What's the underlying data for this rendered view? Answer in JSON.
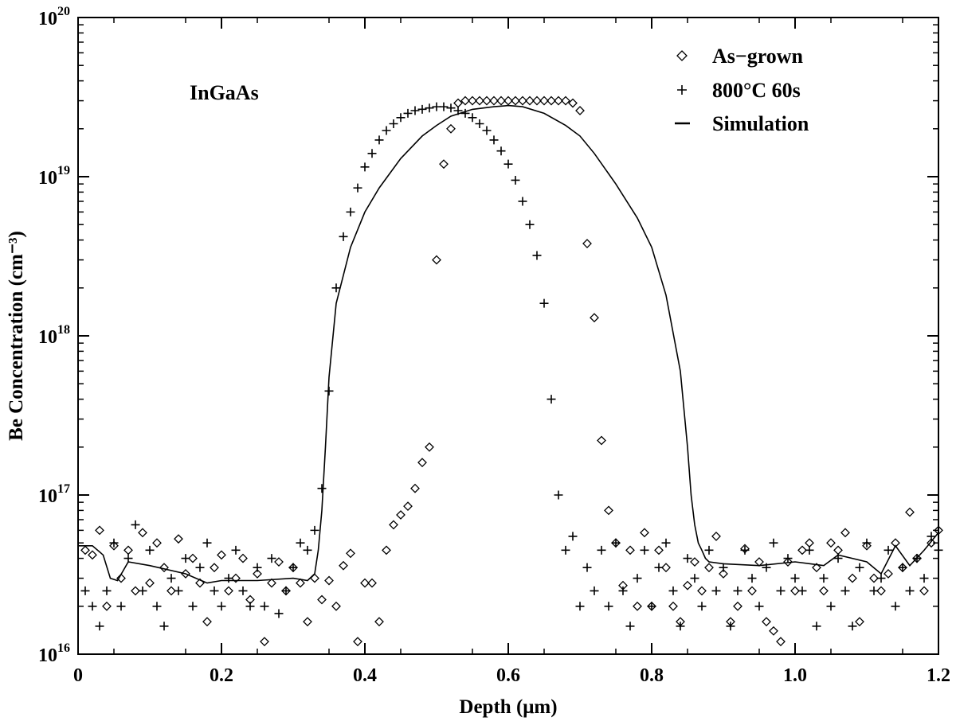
{
  "chart_data": {
    "type": "scatter",
    "xlabel": "Depth (μm)",
    "ylabel": "Be Concentration (cm⁻³)",
    "xlim": [
      0,
      1.2
    ],
    "ylim": [
      1e+16,
      1e+20
    ],
    "yscale": "log",
    "x_ticks": [
      {
        "value": 0,
        "label": "0"
      },
      {
        "value": 0.2,
        "label": "0.2"
      },
      {
        "value": 0.4,
        "label": "0.4"
      },
      {
        "value": 0.6,
        "label": "0.6"
      },
      {
        "value": 0.8,
        "label": "0.8"
      },
      {
        "value": 1.0,
        "label": "1.0"
      },
      {
        "value": 1.2,
        "label": "1.2"
      }
    ],
    "y_ticks": [
      {
        "value": 1e+16,
        "base": "10",
        "exp": "16"
      },
      {
        "value": 1e+17,
        "base": "10",
        "exp": "17"
      },
      {
        "value": 1e+18,
        "base": "10",
        "exp": "18"
      },
      {
        "value": 1e+19,
        "base": "10",
        "exp": "19"
      },
      {
        "value": 1e+20,
        "base": "10",
        "exp": "20"
      }
    ],
    "annotation": "InGaAs",
    "legend_position": "top-right",
    "series": [
      {
        "name": "As−grown",
        "marker": "diamond",
        "x": [
          0.01,
          0.02,
          0.03,
          0.04,
          0.05,
          0.06,
          0.07,
          0.08,
          0.09,
          0.1,
          0.11,
          0.12,
          0.13,
          0.14,
          0.15,
          0.16,
          0.17,
          0.18,
          0.19,
          0.2,
          0.21,
          0.22,
          0.23,
          0.24,
          0.25,
          0.26,
          0.27,
          0.28,
          0.29,
          0.3,
          0.31,
          0.32,
          0.33,
          0.34,
          0.35,
          0.36,
          0.37,
          0.38,
          0.39,
          0.4,
          0.41,
          0.42,
          0.43,
          0.44,
          0.45,
          0.46,
          0.47,
          0.48,
          0.49,
          0.5,
          0.51,
          0.52,
          0.53,
          0.54,
          0.55,
          0.56,
          0.57,
          0.58,
          0.59,
          0.6,
          0.61,
          0.62,
          0.63,
          0.64,
          0.65,
          0.66,
          0.67,
          0.68,
          0.69,
          0.7,
          0.71,
          0.72,
          0.73,
          0.74,
          0.75,
          0.76,
          0.77,
          0.78,
          0.79,
          0.8,
          0.81,
          0.82,
          0.83,
          0.84,
          0.85,
          0.86,
          0.87,
          0.88,
          0.89,
          0.9,
          0.91,
          0.92,
          0.93,
          0.94,
          0.95,
          0.96,
          0.97,
          0.98,
          0.99,
          1.0,
          1.01,
          1.02,
          1.03,
          1.04,
          1.05,
          1.06,
          1.07,
          1.08,
          1.09,
          1.1,
          1.11,
          1.12,
          1.13,
          1.14,
          1.15,
          1.16,
          1.17,
          1.18,
          1.19,
          1.2
        ],
        "y": [
          4.5e+16,
          4.2e+16,
          6e+16,
          2e+16,
          4.8e+16,
          3e+16,
          4.5e+16,
          2.5e+16,
          5.8e+16,
          2.8e+16,
          5e+16,
          3.5e+16,
          2.5e+16,
          5.3e+16,
          3.2e+16,
          4e+16,
          2.8e+16,
          1.6e+16,
          3.5e+16,
          4.2e+16,
          2.5e+16,
          3e+16,
          4e+16,
          2.2e+16,
          3.2e+16,
          1.2e+16,
          2.8e+16,
          3.8e+16,
          2.5e+16,
          3.5e+16,
          2.8e+16,
          1.6e+16,
          3e+16,
          2.2e+16,
          2.9e+16,
          2e+16,
          3.6e+16,
          4.3e+16,
          1.2e+16,
          2.8e+16,
          2.8e+16,
          1.6e+16,
          4.5e+16,
          6.5e+16,
          7.5e+16,
          8.5e+16,
          1.1e+17,
          1.6e+17,
          2e+17,
          3e+18,
          1.2e+19,
          2e+19,
          2.9e+19,
          3e+19,
          3e+19,
          3e+19,
          3e+19,
          3e+19,
          3e+19,
          3e+19,
          3e+19,
          3e+19,
          3e+19,
          3e+19,
          3e+19,
          3e+19,
          3e+19,
          3e+19,
          2.9e+19,
          2.6e+19,
          3.8e+18,
          1.3e+18,
          2.2e+17,
          8e+16,
          5e+16,
          2.7e+16,
          4.5e+16,
          2e+16,
          5.8e+16,
          2e+16,
          4.5e+16,
          3.5e+16,
          2e+16,
          1.6e+16,
          2.7e+16,
          3.8e+16,
          2.5e+16,
          3.5e+16,
          5.5e+16,
          3.2e+16,
          1.6e+16,
          2e+16,
          4.6e+16,
          2.5e+16,
          3.8e+16,
          1.6e+16,
          1.4e+16,
          1.2e+16,
          3.8e+16,
          2.5e+16,
          4.5e+16,
          5e+16,
          3.5e+16,
          2.5e+16,
          5e+16,
          4.5e+16,
          5.8e+16,
          3e+16,
          1.6e+16,
          4.8e+16,
          3e+16,
          2.5e+16,
          3.2e+16,
          5e+16,
          3.5e+16,
          7.8e+16,
          4e+16,
          2.5e+16,
          5e+16,
          6e+16
        ]
      },
      {
        "name": "800°C 60s",
        "marker": "plus",
        "x": [
          0.01,
          0.02,
          0.03,
          0.04,
          0.05,
          0.06,
          0.07,
          0.08,
          0.09,
          0.1,
          0.11,
          0.12,
          0.13,
          0.14,
          0.15,
          0.16,
          0.17,
          0.18,
          0.19,
          0.2,
          0.21,
          0.22,
          0.23,
          0.24,
          0.25,
          0.26,
          0.27,
          0.28,
          0.29,
          0.3,
          0.31,
          0.32,
          0.33,
          0.34,
          0.35,
          0.36,
          0.37,
          0.38,
          0.39,
          0.4,
          0.41,
          0.42,
          0.43,
          0.44,
          0.45,
          0.46,
          0.47,
          0.48,
          0.49,
          0.5,
          0.51,
          0.52,
          0.53,
          0.54,
          0.55,
          0.56,
          0.57,
          0.58,
          0.59,
          0.6,
          0.61,
          0.62,
          0.63,
          0.64,
          0.65,
          0.66,
          0.67,
          0.68,
          0.69,
          0.7,
          0.71,
          0.72,
          0.73,
          0.74,
          0.75,
          0.76,
          0.77,
          0.78,
          0.79,
          0.8,
          0.81,
          0.82,
          0.83,
          0.84,
          0.85,
          0.86,
          0.87,
          0.88,
          0.89,
          0.9,
          0.91,
          0.92,
          0.93,
          0.94,
          0.95,
          0.96,
          0.97,
          0.98,
          0.99,
          1.0,
          1.01,
          1.02,
          1.03,
          1.04,
          1.05,
          1.06,
          1.07,
          1.08,
          1.09,
          1.1,
          1.11,
          1.12,
          1.13,
          1.14,
          1.15,
          1.16,
          1.17,
          1.18,
          1.19,
          1.2
        ],
        "y": [
          2.5e+16,
          2e+16,
          1.5e+16,
          2.5e+16,
          5e+16,
          2e+16,
          4e+16,
          6.5e+16,
          2.5e+16,
          4.5e+16,
          2e+16,
          1.5e+16,
          3e+16,
          2.5e+16,
          4e+16,
          2e+16,
          3.5e+16,
          5e+16,
          2.5e+16,
          2e+16,
          3e+16,
          4.5e+16,
          2.5e+16,
          2e+16,
          3.5e+16,
          2e+16,
          4e+16,
          1.8e+16,
          2.5e+16,
          3.5e+16,
          5e+16,
          4.5e+16,
          6e+16,
          1.1e+17,
          4.5e+17,
          2e+18,
          4.2e+18,
          6e+18,
          8.5e+18,
          1.15e+19,
          1.4e+19,
          1.7e+19,
          1.95e+19,
          2.15e+19,
          2.35e+19,
          2.5e+19,
          2.6e+19,
          2.65e+19,
          2.7e+19,
          2.75e+19,
          2.75e+19,
          2.7e+19,
          2.6e+19,
          2.5e+19,
          2.35e+19,
          2.15e+19,
          1.95e+19,
          1.7e+19,
          1.45e+19,
          1.2e+19,
          9.5e+18,
          7e+18,
          5e+18,
          3.2e+18,
          1.6e+18,
          4e+17,
          1e+17,
          4.5e+16,
          5.5e+16,
          2e+16,
          3.5e+16,
          2.5e+16,
          4.5e+16,
          2e+16,
          5e+16,
          2.5e+16,
          1.5e+16,
          3e+16,
          4.5e+16,
          2e+16,
          3.5e+16,
          5e+16,
          2.5e+16,
          1.5e+16,
          4e+16,
          3e+16,
          2e+16,
          4.5e+16,
          2.5e+16,
          3.5e+16,
          1.5e+16,
          2.5e+16,
          4.5e+16,
          3e+16,
          2e+16,
          3.5e+16,
          5e+16,
          2.5e+16,
          4e+16,
          3e+16,
          2.5e+16,
          4.5e+16,
          1.5e+16,
          3e+16,
          2e+16,
          4e+16,
          2.5e+16,
          1.5e+16,
          3.5e+16,
          5e+16,
          2.5e+16,
          3e+16,
          4.5e+16,
          2e+16,
          3.5e+16,
          2.5e+16,
          4e+16,
          3e+16,
          5.5e+16,
          4.5e+16
        ]
      },
      {
        "name": "Simulation",
        "marker": "line",
        "x": [
          0.0,
          0.02,
          0.035,
          0.045,
          0.055,
          0.07,
          0.1,
          0.15,
          0.18,
          0.2,
          0.25,
          0.3,
          0.32,
          0.33,
          0.335,
          0.34,
          0.345,
          0.35,
          0.36,
          0.38,
          0.4,
          0.42,
          0.45,
          0.48,
          0.5,
          0.52,
          0.55,
          0.58,
          0.6,
          0.62,
          0.65,
          0.68,
          0.7,
          0.72,
          0.75,
          0.78,
          0.8,
          0.82,
          0.84,
          0.85,
          0.855,
          0.86,
          0.865,
          0.87,
          0.875,
          0.88,
          0.9,
          0.95,
          1.0,
          1.04,
          1.06,
          1.1,
          1.12,
          1.14,
          1.16,
          1.18,
          1.2
        ],
        "y": [
          4.8e+16,
          4.8e+16,
          4.2e+16,
          3e+16,
          2.9e+16,
          3.8e+16,
          3.6e+16,
          3.2e+16,
          2.8e+16,
          2.9e+16,
          2.9e+16,
          3e+16,
          2.9e+16,
          3.2e+16,
          4.5e+16,
          8e+16,
          2e+17,
          5.5e+17,
          1.6e+18,
          3.6e+18,
          6e+18,
          8.5e+18,
          1.3e+19,
          1.8e+19,
          2.1e+19,
          2.4e+19,
          2.65e+19,
          2.75e+19,
          2.8e+19,
          2.75e+19,
          2.5e+19,
          2.1e+19,
          1.8e+19,
          1.4e+19,
          9e+18,
          5.5e+18,
          3.6e+18,
          1.8e+18,
          6e+17,
          2e+17,
          1e+17,
          6.5e+16,
          5e+16,
          4.5e+16,
          4e+16,
          3.8e+16,
          3.7e+16,
          3.6e+16,
          3.8e+16,
          3.6e+16,
          4.2e+16,
          3.8e+16,
          3.2e+16,
          4.8e+16,
          3.6e+16,
          4.5e+16,
          5.8e+16
        ]
      }
    ]
  }
}
